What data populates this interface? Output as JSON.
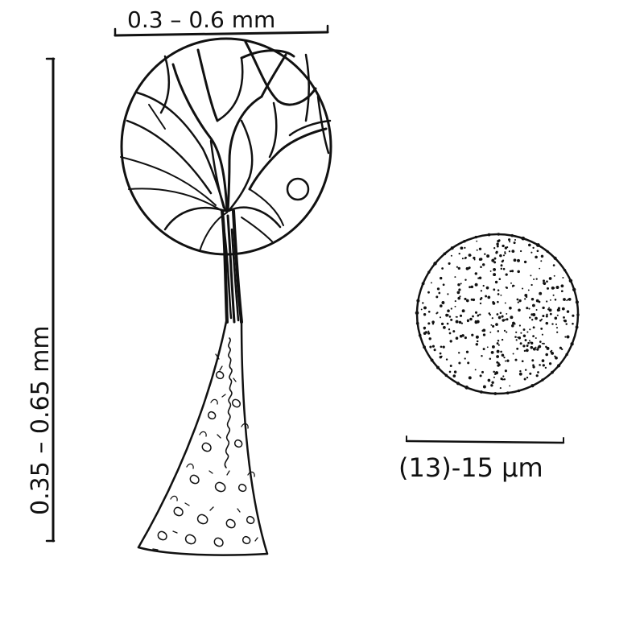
{
  "diagram": {
    "scale_width_label": "0.3 – 0.6 mm",
    "scale_height_label": "0.35 – 0.65 mm",
    "spore_scale_label": "(13)-15 μm",
    "ink_color": "#111111",
    "paper_color": "#ffffff"
  }
}
